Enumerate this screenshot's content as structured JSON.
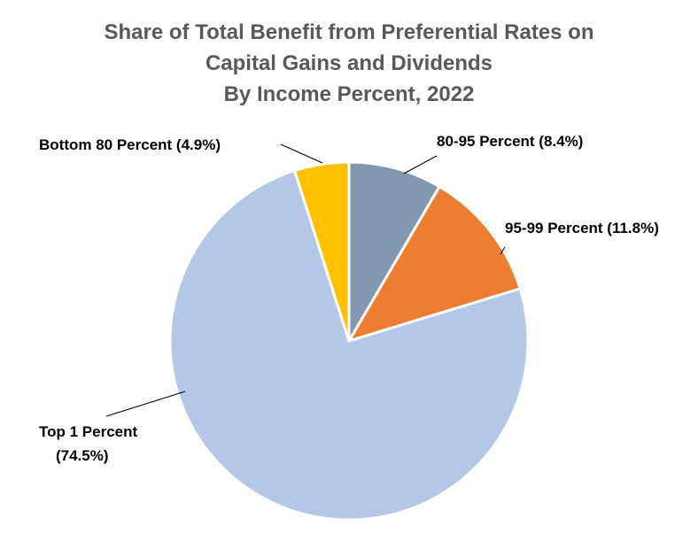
{
  "chart_data": {
    "type": "pie",
    "title": [
      "Share of Total Benefit from Preferential Rates on",
      "Capital Gains and Dividends",
      "By Income Percent, 2022"
    ],
    "slices": [
      {
        "name": "80-95 Percent",
        "value": 8.4,
        "color": "#8497b0",
        "label_lines": [
          "80-95 Percent (8.4%)"
        ]
      },
      {
        "name": "95-99 Percent",
        "value": 11.8,
        "color": "#ed7d31",
        "label_lines": [
          "95-99 Percent (11.8%)"
        ]
      },
      {
        "name": "Top 1 Percent",
        "value": 74.5,
        "color": "#b4c7e7",
        "label_lines": [
          "Top 1 Percent",
          "(74.5%)"
        ]
      },
      {
        "name": "Bottom 80 Percent",
        "value": 4.9,
        "color": "#ffc000",
        "label_lines": [
          "Bottom 80 Percent (4.9%)"
        ]
      }
    ],
    "start_angle_deg": 0,
    "direction": "clockwise"
  }
}
